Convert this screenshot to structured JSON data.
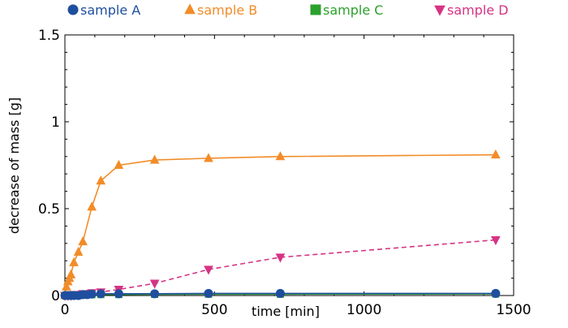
{
  "chart_data": {
    "type": "line",
    "title": "",
    "xlabel": "time [min]",
    "ylabel": "decrease of mass [g]",
    "xlim": [
      0,
      1500
    ],
    "ylim": [
      0,
      1.5
    ],
    "x_ticks": [
      "0",
      "500",
      "1000",
      "1500"
    ],
    "x_tick_values": [
      0,
      500,
      1000,
      1500
    ],
    "y_ticks": [
      "0",
      "0.5",
      "1",
      "1.5"
    ],
    "y_tick_values": [
      0,
      0.5,
      1,
      1.5
    ],
    "grid": false,
    "legend_position": "top",
    "series": [
      {
        "name": "sample A",
        "color": "#1f4e9e",
        "marker": "circle",
        "line_style": "solid",
        "points": [
          [
            0,
            0.0
          ],
          [
            10,
            0.0
          ],
          [
            20,
            0.0
          ],
          [
            30,
            0.0
          ],
          [
            45,
            0.0
          ],
          [
            60,
            0.005
          ],
          [
            75,
            0.005
          ],
          [
            90,
            0.008
          ],
          [
            120,
            0.01
          ],
          [
            180,
            0.01
          ],
          [
            300,
            0.01
          ],
          [
            480,
            0.012
          ],
          [
            720,
            0.012
          ],
          [
            1440,
            0.012
          ]
        ]
      },
      {
        "name": "sample B",
        "color": "#f28c28",
        "marker": "triangle-up",
        "line_style": "solid",
        "points": [
          [
            0,
            0.0
          ],
          [
            5,
            0.05
          ],
          [
            10,
            0.08
          ],
          [
            15,
            0.1
          ],
          [
            20,
            0.12
          ],
          [
            30,
            0.19
          ],
          [
            45,
            0.25
          ],
          [
            60,
            0.31
          ],
          [
            90,
            0.51
          ],
          [
            120,
            0.66
          ],
          [
            180,
            0.75
          ],
          [
            300,
            0.78
          ],
          [
            480,
            0.79
          ],
          [
            720,
            0.8
          ],
          [
            1440,
            0.81
          ]
        ]
      },
      {
        "name": "sample C",
        "color": "#2ca02c",
        "marker": "square",
        "line_style": "solid",
        "points": [
          [
            0,
            0.0
          ],
          [
            10,
            0.0
          ],
          [
            20,
            0.0
          ],
          [
            30,
            0.0
          ],
          [
            45,
            0.0
          ],
          [
            60,
            0.003
          ],
          [
            90,
            0.005
          ],
          [
            120,
            0.006
          ],
          [
            180,
            0.006
          ],
          [
            300,
            0.007
          ],
          [
            480,
            0.008
          ],
          [
            720,
            0.008
          ],
          [
            1440,
            0.009
          ]
        ]
      },
      {
        "name": "sample D",
        "color": "#d63384",
        "marker": "triangle-down",
        "line_style": "dashed",
        "points": [
          [
            0,
            0.0
          ],
          [
            10,
            0.0
          ],
          [
            20,
            0.0
          ],
          [
            30,
            0.005
          ],
          [
            60,
            0.01
          ],
          [
            90,
            0.015
          ],
          [
            120,
            0.02
          ],
          [
            180,
            0.035
          ],
          [
            300,
            0.07
          ],
          [
            480,
            0.15
          ],
          [
            720,
            0.22
          ],
          [
            1440,
            0.32
          ]
        ]
      }
    ]
  }
}
